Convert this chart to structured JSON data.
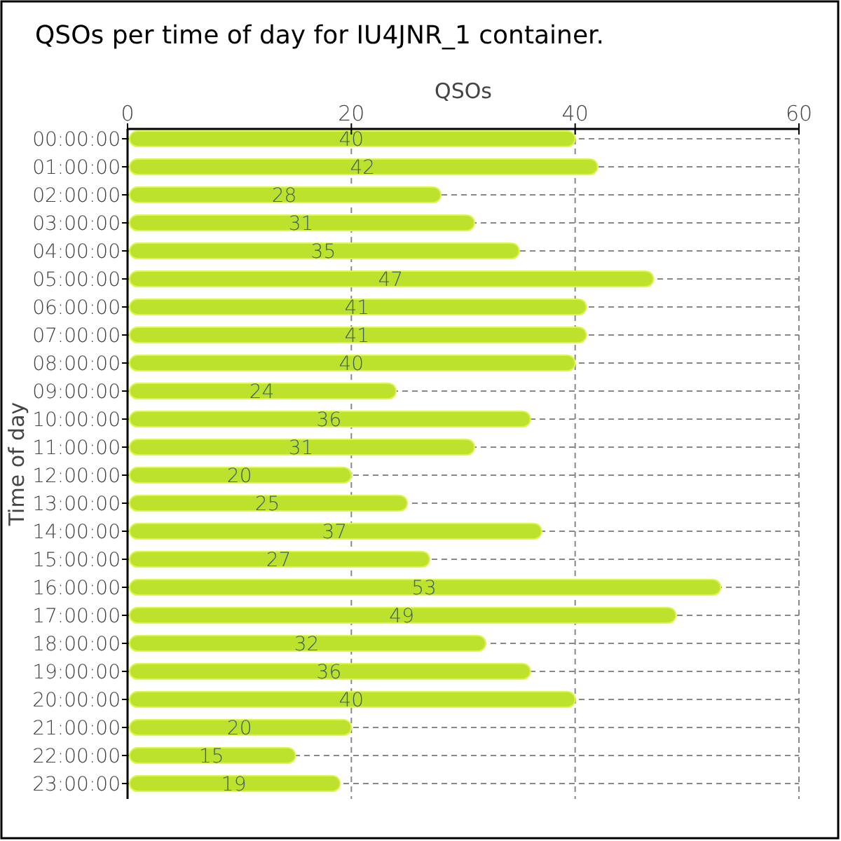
{
  "chart_data": {
    "type": "bar",
    "orientation": "horizontal",
    "title": "QSOs per time of day for IU4JNR_1 container.",
    "xlabel": "QSOs",
    "ylabel": "Time of day",
    "categories": [
      "00:00:00",
      "01:00:00",
      "02:00:00",
      "03:00:00",
      "04:00:00",
      "05:00:00",
      "06:00:00",
      "07:00:00",
      "08:00:00",
      "09:00:00",
      "10:00:00",
      "11:00:00",
      "12:00:00",
      "13:00:00",
      "14:00:00",
      "15:00:00",
      "16:00:00",
      "17:00:00",
      "18:00:00",
      "19:00:00",
      "20:00:00",
      "21:00:00",
      "22:00:00",
      "23:00:00"
    ],
    "values": [
      40,
      42,
      28,
      31,
      35,
      47,
      41,
      41,
      40,
      24,
      36,
      31,
      20,
      25,
      37,
      27,
      53,
      49,
      32,
      36,
      40,
      20,
      15,
      19
    ],
    "color": "#bce22e",
    "xlim": [
      0,
      60
    ],
    "xticks": [
      0,
      20,
      40,
      60
    ],
    "grid": true,
    "data_labels": true
  }
}
